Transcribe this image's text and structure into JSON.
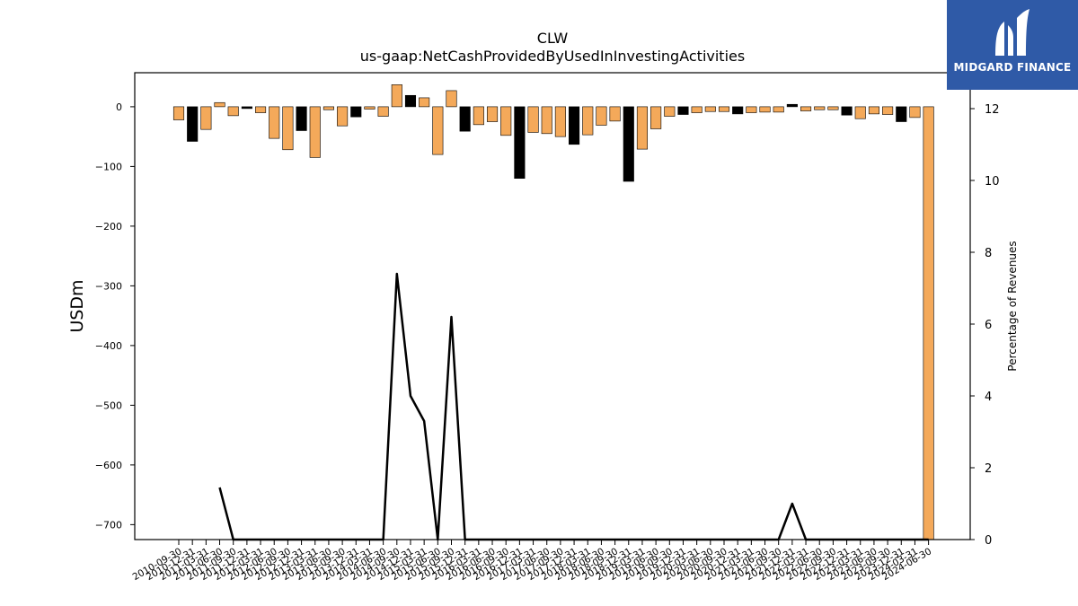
{
  "chart_data": {
    "type": "bar",
    "title": "CLW",
    "subtitle": "us-gaap:NetCashProvidedByUsedInInvestingActivities",
    "ylabel": "USDm",
    "y2label": "Percentage of Revenues",
    "ylim": [
      -725,
      57
    ],
    "y2lim": [
      0,
      13
    ],
    "yticks": [
      0,
      -100,
      -200,
      -300,
      -400,
      -500,
      -600,
      -700
    ],
    "y2ticks": [
      0,
      2,
      4,
      6,
      8,
      10,
      12
    ],
    "bar_colors": {
      "orange": "#f4a95a",
      "black": "#000000"
    },
    "line_color": "#000000",
    "categories": [
      "2010-09-30",
      "2010-12-31",
      "2011-03-31",
      "2011-06-30",
      "2011-09-30",
      "2011-12-31",
      "2012-03-31",
      "2012-06-30",
      "2012-09-30",
      "2012-12-31",
      "2013-03-31",
      "2013-06-30",
      "2013-09-30",
      "2013-12-31",
      "2014-03-31",
      "2014-06-30",
      "2014-09-30",
      "2014-12-31",
      "2015-03-31",
      "2015-06-30",
      "2015-09-30",
      "2015-12-31",
      "2016-03-31",
      "2016-06-30",
      "2016-09-30",
      "2016-12-31",
      "2017-03-31",
      "2017-06-30",
      "2017-09-30",
      "2017-12-31",
      "2018-03-31",
      "2018-06-30",
      "2018-09-30",
      "2018-12-31",
      "2019-03-31",
      "2019-06-30",
      "2019-09-30",
      "2019-12-31",
      "2020-03-31",
      "2020-06-30",
      "2020-09-30",
      "2020-12-31",
      "2021-03-31",
      "2021-06-30",
      "2021-09-30",
      "2021-12-31",
      "2022-03-31",
      "2022-06-30",
      "2022-09-30",
      "2022-12-31",
      "2023-03-31",
      "2023-06-30",
      "2023-09-30",
      "2023-12-31",
      "2024-03-31",
      "2024-06-30"
    ],
    "values": [
      -22,
      -58,
      -38,
      7,
      -15,
      -3,
      -10,
      -53,
      -72,
      -40,
      -85,
      -5,
      -32,
      -17,
      -4,
      -16,
      37,
      19,
      15,
      -80,
      27,
      -41,
      -30,
      -25,
      -48,
      -120,
      -43,
      -45,
      -50,
      -63,
      -47,
      -31,
      -24,
      -125,
      -71,
      -37,
      -16,
      -13,
      -10,
      -8,
      -8,
      -12,
      -10,
      -9,
      -9,
      4,
      -7,
      -5,
      -5,
      -14,
      -20,
      -12,
      -13,
      -25,
      -18,
      -725
    ],
    "bar_color_keys": [
      "orange",
      "black",
      "orange",
      "orange",
      "orange",
      "black",
      "orange",
      "orange",
      "orange",
      "black",
      "orange",
      "orange",
      "orange",
      "black",
      "orange",
      "orange",
      "orange",
      "black",
      "orange",
      "orange",
      "orange",
      "black",
      "orange",
      "orange",
      "orange",
      "black",
      "orange",
      "orange",
      "orange",
      "black",
      "orange",
      "orange",
      "orange",
      "black",
      "orange",
      "orange",
      "orange",
      "black",
      "orange",
      "orange",
      "orange",
      "black",
      "orange",
      "orange",
      "orange",
      "black",
      "orange",
      "orange",
      "orange",
      "black",
      "orange",
      "orange",
      "orange",
      "black",
      "orange",
      "orange"
    ],
    "line_values": [
      null,
      null,
      null,
      1.45,
      0,
      0,
      0,
      0,
      0,
      0,
      0,
      0,
      0,
      0,
      0,
      0,
      7.4,
      4.0,
      3.3,
      0,
      6.2,
      0,
      0,
      0,
      0,
      0,
      0,
      0,
      0,
      0,
      0,
      0,
      0,
      0,
      0,
      0,
      0,
      0,
      0,
      0,
      0,
      0,
      0,
      0,
      0,
      1.0,
      0,
      0,
      0,
      0,
      0,
      0,
      0,
      0,
      0,
      0
    ]
  },
  "logo": {
    "text": "MIDGARD FINANCE"
  }
}
